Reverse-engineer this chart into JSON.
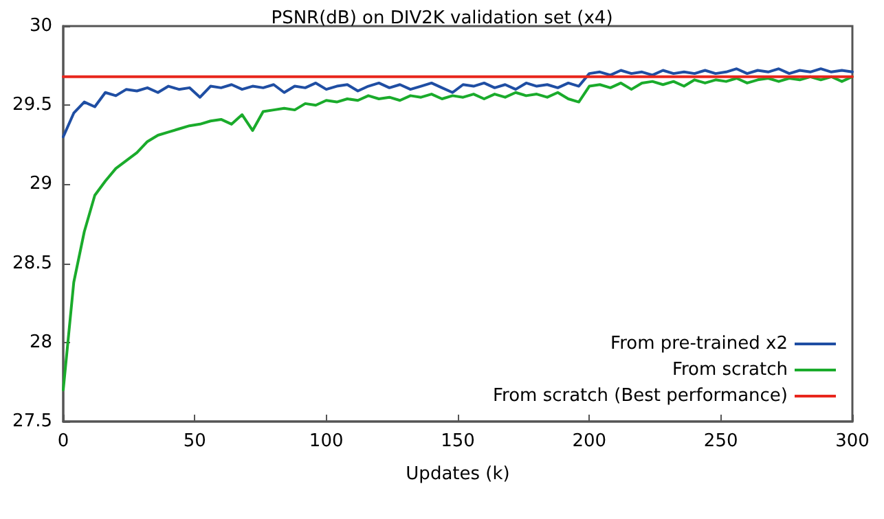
{
  "chart_data": {
    "type": "line",
    "title": "PSNR(dB) on DIV2K validation set (x4)",
    "xlabel": "Updates (k)",
    "x": [
      0,
      4,
      8,
      12,
      16,
      20,
      24,
      28,
      32,
      36,
      40,
      44,
      48,
      52,
      56,
      60,
      64,
      68,
      72,
      76,
      80,
      84,
      88,
      92,
      96,
      100,
      104,
      108,
      112,
      116,
      120,
      124,
      128,
      132,
      136,
      140,
      144,
      148,
      152,
      156,
      160,
      164,
      168,
      172,
      176,
      180,
      184,
      188,
      192,
      196,
      200,
      204,
      208,
      212,
      216,
      220,
      224,
      228,
      232,
      236,
      240,
      244,
      248,
      252,
      256,
      260,
      264,
      268,
      272,
      276,
      280,
      284,
      288,
      292,
      296,
      300
    ],
    "series": [
      {
        "name": "From pre-trained x2",
        "color": "#1f4ea3",
        "values": [
          29.3,
          29.45,
          29.52,
          29.49,
          29.58,
          29.56,
          29.6,
          29.59,
          29.61,
          29.58,
          29.62,
          29.6,
          29.61,
          29.55,
          29.62,
          29.61,
          29.63,
          29.6,
          29.62,
          29.61,
          29.63,
          29.58,
          29.62,
          29.61,
          29.64,
          29.6,
          29.62,
          29.63,
          29.59,
          29.62,
          29.64,
          29.61,
          29.63,
          29.6,
          29.62,
          29.64,
          29.61,
          29.58,
          29.63,
          29.62,
          29.64,
          29.61,
          29.63,
          29.6,
          29.64,
          29.62,
          29.63,
          29.61,
          29.64,
          29.62,
          29.7,
          29.71,
          29.69,
          29.72,
          29.7,
          29.71,
          29.69,
          29.72,
          29.7,
          29.71,
          29.7,
          29.72,
          29.7,
          29.71,
          29.73,
          29.7,
          29.72,
          29.71,
          29.73,
          29.7,
          29.72,
          29.71,
          29.73,
          29.71,
          29.72,
          29.71
        ]
      },
      {
        "name": "From scratch",
        "color": "#1aab2b",
        "values": [
          27.7,
          28.38,
          28.7,
          28.93,
          29.02,
          29.1,
          29.15,
          29.2,
          29.27,
          29.31,
          29.33,
          29.35,
          29.37,
          29.38,
          29.4,
          29.41,
          29.38,
          29.44,
          29.34,
          29.46,
          29.47,
          29.48,
          29.47,
          29.51,
          29.5,
          29.53,
          29.52,
          29.54,
          29.53,
          29.56,
          29.54,
          29.55,
          29.53,
          29.56,
          29.55,
          29.57,
          29.54,
          29.56,
          29.55,
          29.57,
          29.54,
          29.57,
          29.55,
          29.58,
          29.56,
          29.57,
          29.55,
          29.58,
          29.54,
          29.52,
          29.62,
          29.63,
          29.61,
          29.64,
          29.6,
          29.64,
          29.65,
          29.63,
          29.65,
          29.62,
          29.66,
          29.64,
          29.66,
          29.65,
          29.67,
          29.64,
          29.66,
          29.67,
          29.65,
          29.67,
          29.66,
          29.68,
          29.66,
          29.68,
          29.65,
          29.68
        ]
      },
      {
        "name": "From scratch (Best performance)",
        "color": "#e8261c",
        "x": [
          0,
          300
        ],
        "values": [
          29.68,
          29.68
        ]
      }
    ],
    "xlim": [
      0,
      300
    ],
    "xticks": [
      0,
      50,
      100,
      150,
      200,
      250,
      300
    ],
    "ylim": [
      27.5,
      30
    ],
    "yticks": [
      27.5,
      28,
      28.5,
      29,
      29.5,
      30
    ],
    "grid": false,
    "legend": "bottom right",
    "marker": "none",
    "line_style": "solid"
  }
}
